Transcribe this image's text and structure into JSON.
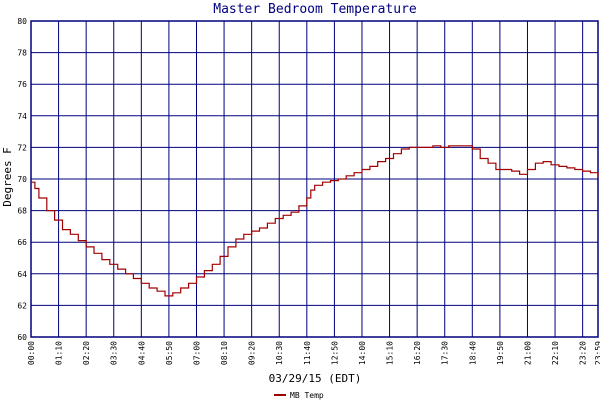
{
  "chart_data": {
    "type": "line",
    "title": "Master Bedroom Temperature",
    "xlabel": "03/29/15 (EDT)",
    "ylabel": "Degrees F",
    "ylim": [
      60,
      80
    ],
    "y_ticks": [
      60,
      62,
      64,
      66,
      68,
      70,
      72,
      74,
      76,
      78,
      80
    ],
    "x_unit": "time of day",
    "xlim": [
      "00:00",
      "23:59"
    ],
    "x_ticks": [
      "00:00",
      "01:10",
      "02:20",
      "03:30",
      "04:40",
      "05:50",
      "07:00",
      "08:10",
      "09:20",
      "10:30",
      "11:40",
      "12:50",
      "14:00",
      "15:10",
      "16:20",
      "17:30",
      "18:40",
      "19:50",
      "21:00",
      "22:10",
      "23:20",
      "23:59"
    ],
    "grid": true,
    "legend_position": "bottom-left",
    "colors": {
      "series": "#a00000",
      "grid": "#00007f",
      "axis_text": "#000000",
      "title": "#000080"
    },
    "series": [
      {
        "name": "MB Temp",
        "x": [
          "00:00",
          "00:10",
          "00:20",
          "00:40",
          "01:00",
          "01:20",
          "01:40",
          "02:00",
          "02:20",
          "02:40",
          "03:00",
          "03:20",
          "03:40",
          "04:00",
          "04:20",
          "04:40",
          "05:00",
          "05:20",
          "05:40",
          "05:50",
          "06:00",
          "06:20",
          "06:40",
          "07:00",
          "07:20",
          "07:40",
          "08:00",
          "08:20",
          "08:40",
          "09:00",
          "09:20",
          "09:40",
          "10:00",
          "10:20",
          "10:40",
          "11:00",
          "11:20",
          "11:40",
          "11:50",
          "12:00",
          "12:20",
          "12:40",
          "13:00",
          "13:20",
          "13:40",
          "14:00",
          "14:20",
          "14:40",
          "15:00",
          "15:20",
          "15:40",
          "16:00",
          "16:20",
          "16:40",
          "17:00",
          "17:20",
          "17:40",
          "18:00",
          "18:20",
          "18:40",
          "19:00",
          "19:20",
          "19:40",
          "20:00",
          "20:20",
          "20:40",
          "21:00",
          "21:20",
          "21:40",
          "22:00",
          "22:20",
          "22:40",
          "23:00",
          "23:20",
          "23:40",
          "23:59"
        ],
        "y": [
          69.8,
          69.4,
          68.8,
          68.0,
          67.4,
          66.8,
          66.5,
          66.1,
          65.7,
          65.3,
          64.9,
          64.6,
          64.3,
          64.0,
          63.7,
          63.4,
          63.1,
          62.9,
          62.6,
          62.6,
          62.8,
          63.1,
          63.4,
          63.8,
          64.2,
          64.6,
          65.1,
          65.7,
          66.2,
          66.5,
          66.7,
          66.9,
          67.2,
          67.5,
          67.7,
          67.9,
          68.3,
          68.8,
          69.3,
          69.6,
          69.8,
          69.9,
          70.0,
          70.2,
          70.4,
          70.6,
          70.8,
          71.1,
          71.3,
          71.6,
          71.9,
          72.0,
          72.0,
          72.0,
          72.1,
          72.0,
          72.1,
          72.1,
          72.1,
          71.9,
          71.3,
          71.0,
          70.6,
          70.6,
          70.5,
          70.3,
          70.6,
          71.0,
          71.1,
          70.9,
          70.8,
          70.7,
          70.6,
          70.5,
          70.4,
          70.1
        ]
      }
    ]
  }
}
